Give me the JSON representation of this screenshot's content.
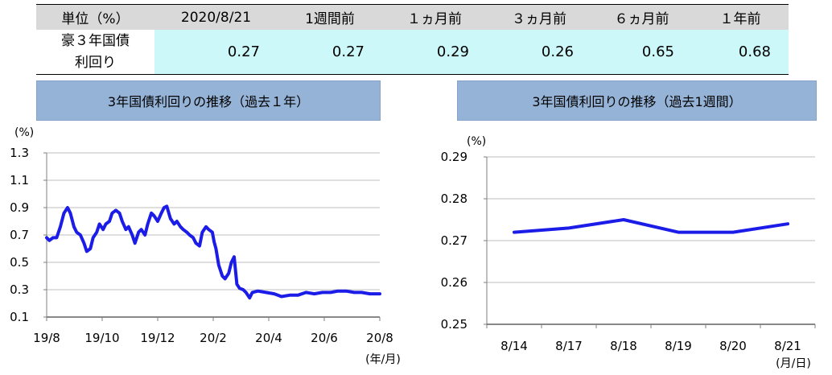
{
  "colors": {
    "header_bg": "#d9d9d9",
    "value_bg": "#cdf8fa",
    "title_bg": "#95b3d7",
    "grid": "#bfbfbf",
    "line": "#1c1ce8"
  },
  "table": {
    "header": [
      "単位（%）",
      "2020/8/21",
      "1週間前",
      "１ヵ月前",
      "３ヵ月前",
      "６ヵ月前",
      "１年前"
    ],
    "row": {
      "label_line1": "豪３年国債",
      "label_line2": "利回り",
      "values": [
        "0.27",
        "0.27",
        "0.29",
        "0.26",
        "0.65",
        "0.68"
      ]
    }
  },
  "chart_data": [
    {
      "type": "line",
      "title": "3年国債利回りの推移（過去１年）",
      "ylabel": "(%)",
      "xlabel": "(年/月)",
      "ylim": [
        0.1,
        1.3
      ],
      "yticks": [
        "1.3",
        "1.1",
        "0.9",
        "0.7",
        "0.5",
        "0.3",
        "0.1"
      ],
      "xlim": [
        "2019-08-21",
        "2020-08-21"
      ],
      "xticks": [
        "19/8",
        "19/10",
        "19/12",
        "20/2",
        "20/4",
        "20/6",
        "20/8"
      ],
      "grid": true,
      "legend": "none",
      "x": [
        "2019-08-21",
        "2019-08-24",
        "2019-08-28",
        "2019-09-01",
        "2019-09-05",
        "2019-09-09",
        "2019-09-13",
        "2019-09-16",
        "2019-09-20",
        "2019-09-23",
        "2019-09-27",
        "2019-10-01",
        "2019-10-04",
        "2019-10-08",
        "2019-10-11",
        "2019-10-15",
        "2019-10-18",
        "2019-10-22",
        "2019-10-25",
        "2019-10-29",
        "2019-11-01",
        "2019-11-05",
        "2019-11-09",
        "2019-11-12",
        "2019-11-16",
        "2019-11-19",
        "2019-11-23",
        "2019-11-26",
        "2019-11-30",
        "2019-12-03",
        "2019-12-07",
        "2019-12-10",
        "2019-12-14",
        "2019-12-17",
        "2019-12-21",
        "2019-12-25",
        "2019-12-28",
        "2019-12-31",
        "2020-01-04",
        "2020-01-08",
        "2020-01-11",
        "2020-01-15",
        "2020-01-18",
        "2020-01-22",
        "2020-01-25",
        "2020-01-29",
        "2020-02-01",
        "2020-02-05",
        "2020-02-08",
        "2020-02-12",
        "2020-02-15",
        "2020-02-19",
        "2020-02-21",
        "2020-02-23",
        "2020-02-26",
        "2020-03-01",
        "2020-03-04",
        "2020-03-08",
        "2020-03-11",
        "2020-03-14",
        "2020-03-17",
        "2020-03-20",
        "2020-03-24",
        "2020-03-27",
        "2020-03-31",
        "2020-04-03",
        "2020-04-09",
        "2020-04-18",
        "2020-04-27",
        "2020-05-05",
        "2020-05-14",
        "2020-05-23",
        "2020-06-01",
        "2020-06-10",
        "2020-06-19",
        "2020-06-28",
        "2020-07-06",
        "2020-07-15",
        "2020-07-24",
        "2020-08-01",
        "2020-08-10",
        "2020-08-21"
      ],
      "series": [
        {
          "values": [
            0.68,
            0.66,
            0.68,
            0.68,
            0.76,
            0.86,
            0.9,
            0.86,
            0.76,
            0.72,
            0.7,
            0.64,
            0.58,
            0.6,
            0.68,
            0.72,
            0.78,
            0.74,
            0.78,
            0.8,
            0.86,
            0.88,
            0.86,
            0.8,
            0.74,
            0.76,
            0.7,
            0.64,
            0.72,
            0.74,
            0.7,
            0.78,
            0.86,
            0.84,
            0.8,
            0.86,
            0.9,
            0.91,
            0.82,
            0.78,
            0.8,
            0.76,
            0.74,
            0.72,
            0.7,
            0.68,
            0.64,
            0.62,
            0.72,
            0.76,
            0.74,
            0.72,
            0.65,
            0.6,
            0.48,
            0.4,
            0.38,
            0.42,
            0.5,
            0.54,
            0.34,
            0.31,
            0.3,
            0.28,
            0.24,
            0.28,
            0.29,
            0.28,
            0.27,
            0.25,
            0.26,
            0.26,
            0.28,
            0.27,
            0.28,
            0.28,
            0.29,
            0.29,
            0.28,
            0.28,
            0.27,
            0.27
          ]
        }
      ]
    },
    {
      "type": "line",
      "title": "3年国債利回りの推移（過去1週間）",
      "ylabel": "(%)",
      "xlabel": "(月/日)",
      "ylim": [
        0.25,
        0.29
      ],
      "yticks": [
        "0.29",
        "0.28",
        "0.27",
        "0.26",
        "0.25"
      ],
      "categories": [
        "8/14",
        "8/17",
        "8/18",
        "8/19",
        "8/20",
        "8/21"
      ],
      "grid": true,
      "legend": "none",
      "series": [
        {
          "values": [
            0.272,
            0.273,
            0.275,
            0.272,
            0.272,
            0.274
          ]
        }
      ]
    }
  ]
}
